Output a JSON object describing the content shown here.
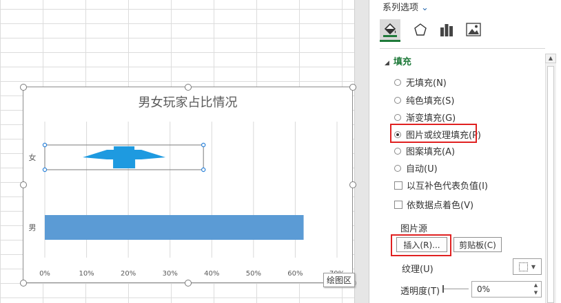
{
  "chart": {
    "title": "男女玩家占比情况",
    "plot_area_tooltip": "绘图区"
  },
  "chart_data": {
    "type": "bar",
    "orientation": "horizontal",
    "title": "男女玩家占比情况",
    "categories": [
      "女",
      "男"
    ],
    "series": [
      {
        "values": [
          0.38,
          0.62
        ]
      }
    ],
    "xticks": [
      "0%",
      "10%",
      "20%",
      "30%",
      "40%",
      "50%",
      "60%",
      "70%"
    ],
    "xlim": [
      0,
      0.7
    ],
    "grid": true,
    "selected_category": "女",
    "bar_color": "#5b9bd5",
    "picture_fill_color": "#1e9ae0"
  },
  "pane": {
    "header": "系列选项",
    "tabs": [
      {
        "name": "fill-line",
        "icon": "paint-bucket-icon",
        "selected": true
      },
      {
        "name": "effects",
        "icon": "pentagon-icon"
      },
      {
        "name": "series-options",
        "icon": "bar-chart-icon"
      },
      {
        "name": "picture",
        "icon": "picture-icon"
      }
    ],
    "section": "填充",
    "options": {
      "no_fill": "无填充(N)",
      "solid_fill": "纯色填充(S)",
      "gradient_fill": "渐变填充(G)",
      "picture_fill": "图片或纹理填充(P)",
      "pattern_fill": "图案填充(A)",
      "automatic": "自动(U)",
      "invert": "以互补色代表负值(I)",
      "vary_colors": "依数据点着色(V)"
    },
    "selected_option": "picture_fill",
    "picture_source": "图片源",
    "insert_button": "插入(R)...",
    "clipboard_button": "剪贴板(C)",
    "texture_label": "纹理(U)",
    "transparency_label": "透明度(T)",
    "transparency_value": "0%",
    "accent_color": "#1f7a3a",
    "highlight_color": "#e02020"
  }
}
